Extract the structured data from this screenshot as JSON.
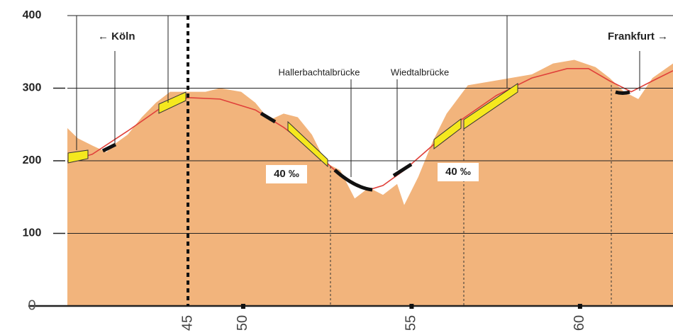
{
  "chart_data": {
    "type": "area",
    "xlim": [
      44.78,
      62.76
    ],
    "ylim": [
      0,
      400
    ],
    "xticks": [
      50,
      55,
      60
    ],
    "yticks": [
      0,
      100,
      200,
      300,
      400
    ],
    "marker": {
      "label": "45",
      "x": 48.36
    },
    "series": [
      {
        "type": "area",
        "color": "#f2b47c",
        "x": [
          44.78,
          45.09,
          45.52,
          45.94,
          46.15,
          46.57,
          46.99,
          47.41,
          47.83,
          48.36,
          48.88,
          49.31,
          49.94,
          50.36,
          50.78,
          51.2,
          51.62,
          52.04,
          52.46,
          52.88,
          53.31,
          53.73,
          54.15,
          54.57,
          54.78,
          55.2,
          55.62,
          56.04,
          56.67,
          57.31,
          57.94,
          58.57,
          59.2,
          59.83,
          60.46,
          60.88,
          61.31,
          61.73,
          62.15,
          62.76
        ],
        "values": [
          245,
          231,
          221,
          212,
          222,
          236,
          260,
          280,
          295,
          295,
          295,
          300,
          295,
          280,
          256,
          265,
          260,
          236,
          197,
          187,
          148,
          163,
          153,
          168,
          139,
          178,
          226,
          265,
          304,
          309,
          314,
          319,
          334,
          339,
          329,
          314,
          295,
          285,
          314,
          334
        ]
      },
      {
        "type": "line",
        "color": "#e0403a",
        "x": [
          44.78,
          45.52,
          46.57,
          47.62,
          48.36,
          49.31,
          50.36,
          51.2,
          52.04,
          52.67,
          53.31,
          53.73,
          54.15,
          54.78,
          55.62,
          56.46,
          57.52,
          58.57,
          59.62,
          60.25,
          60.88,
          61.52,
          62.15,
          62.76
        ],
        "values": [
          199,
          209,
          241,
          275,
          287,
          285,
          270,
          246,
          217,
          189,
          168,
          160,
          166,
          187,
          221,
          256,
          290,
          314,
          327,
          327,
          310,
          295,
          310,
          324
        ]
      }
    ],
    "annotations": [
      "← Köln",
      "Frankfurt →",
      "Hallerbachtalbrücke",
      "Wiedtalbrücke",
      "40 ‰",
      "40 ‰"
    ]
  }
}
